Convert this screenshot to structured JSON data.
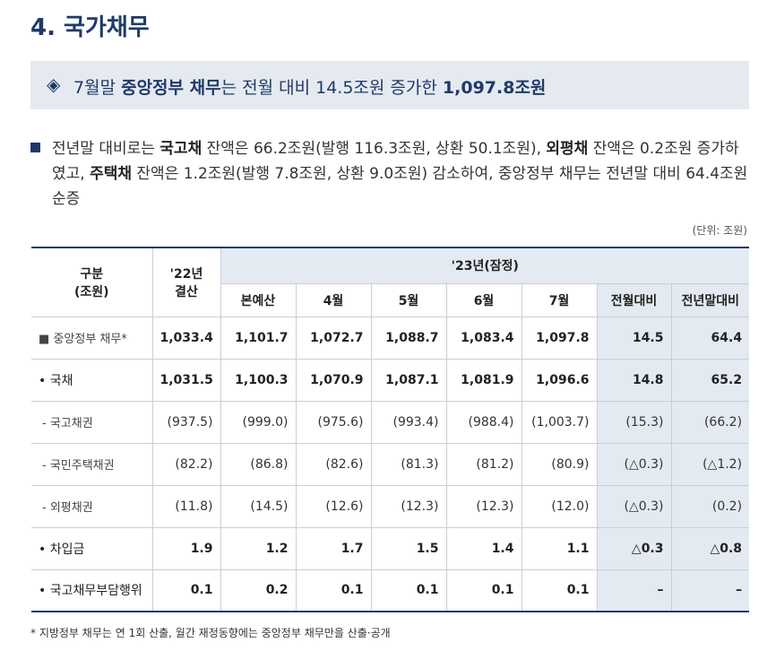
{
  "section_title": "4. 국가채무",
  "highlight": {
    "icon": "diamond-icon",
    "pre": "7월말 ",
    "bold1": "중앙정부 채무",
    "mid": "는 전월 대비 14.5조원 증가한 ",
    "bold2": "1,097.8조원"
  },
  "bullet": {
    "icon": "square-bullet-icon",
    "t1": "전년말 대비로는 ",
    "b1": "국고채",
    "t2": " 잔액은 66.2조원(발행 116.3조원, 상환 50.1조원), ",
    "b2": "외평채",
    "t3": " 잔액은 0.2조원 증가하였고, ",
    "b3": "주택채",
    "t4": " 잔액은 1.2조원(발행 7.8조원, 상환 9.0조원) 감소하여, 중앙정부 채무는 전년말 대비 64.4조원 순증"
  },
  "unit": "(단위: 조원)",
  "table": {
    "header": {
      "col0_line1": "구분",
      "col0_line2": "(조원)",
      "col1_line1": "'22년",
      "col1_line2": "결산",
      "group": "'23년(잠정)",
      "sub": [
        "본예산",
        "4월",
        "5월",
        "6월",
        "7월",
        "전월대비",
        "전년말대비"
      ]
    },
    "rows": [
      {
        "marker": "■",
        "label": "중앙정부 채무*",
        "level": "lvl0",
        "values": [
          "1,033.4",
          "1,101.7",
          "1,072.7",
          "1,088.7",
          "1,083.4",
          "1,097.8",
          "14.5",
          "64.4"
        ]
      },
      {
        "marker": "•",
        "label": "국채",
        "level": "lvl1",
        "values": [
          "1,031.5",
          "1,100.3",
          "1,070.9",
          "1,087.1",
          "1,081.9",
          "1,096.6",
          "14.8",
          "65.2"
        ]
      },
      {
        "marker": "-",
        "label": "국고채권",
        "level": "lvl2",
        "values": [
          "(937.5)",
          "(999.0)",
          "(975.6)",
          "(993.4)",
          "(988.4)",
          "(1,003.7)",
          "(15.3)",
          "(66.2)"
        ]
      },
      {
        "marker": "-",
        "label": "국민주택채권",
        "level": "lvl2",
        "values": [
          "(82.2)",
          "(86.8)",
          "(82.6)",
          "(81.3)",
          "(81.2)",
          "(80.9)",
          "(△0.3)",
          "(△1.2)"
        ]
      },
      {
        "marker": "-",
        "label": "외평채권",
        "level": "lvl2",
        "values": [
          "(11.8)",
          "(14.5)",
          "(12.6)",
          "(12.3)",
          "(12.3)",
          "(12.0)",
          "(△0.3)",
          "(0.2)"
        ]
      },
      {
        "marker": "•",
        "label": "차입금",
        "level": "lvl1",
        "values": [
          "1.9",
          "1.2",
          "1.7",
          "1.5",
          "1.4",
          "1.1",
          "△0.3",
          "△0.8"
        ]
      },
      {
        "marker": "•",
        "label": "국고채무부담행위",
        "level": "lvl1",
        "values": [
          "0.1",
          "0.2",
          "0.1",
          "0.1",
          "0.1",
          "0.1",
          "–",
          "–"
        ]
      }
    ]
  },
  "footnote": "* 지방정부 채무는 연 1회 산출, 월간 재정동향에는 중앙정부 채무만을 산출·공개"
}
